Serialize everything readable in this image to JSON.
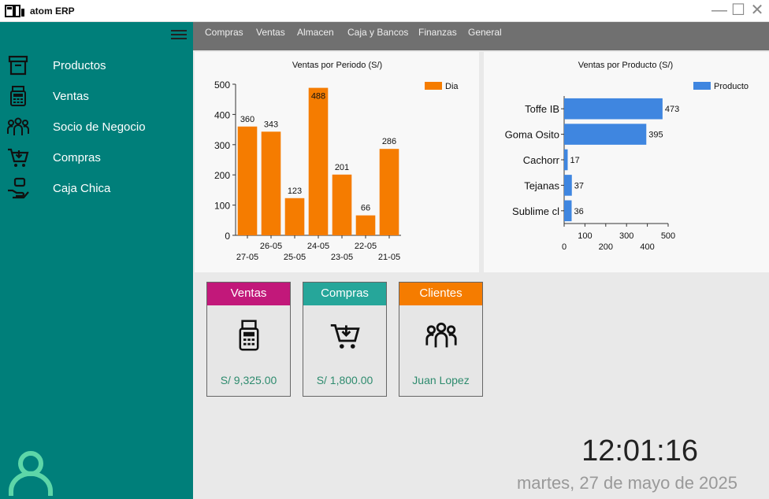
{
  "app": {
    "title": "atom ERP"
  },
  "window_controls": {
    "minimize": "—",
    "maximize": "☐",
    "close": "✕"
  },
  "sidebar": {
    "items": [
      {
        "label": "Productos",
        "icon": "box-icon"
      },
      {
        "label": "Ventas",
        "icon": "cash-register-icon"
      },
      {
        "label": "Socio de Negocio",
        "icon": "people-group-icon"
      },
      {
        "label": "Compras",
        "icon": "cart-icon"
      },
      {
        "label": "Caja Chica",
        "icon": "hand-money-icon"
      }
    ],
    "user_icon": "user-icon"
  },
  "menu": {
    "items": [
      "Compras",
      "Ventas",
      "Almacen",
      "Caja y Bancos",
      "Finanzas",
      "General"
    ]
  },
  "colors": {
    "sidebar": "#007f7a",
    "bar_orange": "#f57c00",
    "bar_blue": "#3f86e0",
    "ventas": "#c2187a",
    "compras": "#26a69a",
    "clientes": "#f57c00",
    "value_green": "#2e8b6e"
  },
  "chart_data": [
    {
      "type": "bar",
      "title": "Ventas por Periodo (S/)",
      "categories": [
        "27-05",
        "26-05",
        "25-05",
        "24-05",
        "23-05",
        "22-05",
        "21-05"
      ],
      "series": [
        {
          "name": "Dia",
          "values": [
            360,
            343,
            123,
            488,
            201,
            66,
            286
          ]
        }
      ],
      "ylim": [
        0,
        500
      ],
      "yticks": [
        "0",
        "100",
        "200",
        "300",
        "400",
        "500"
      ],
      "legend": "top-right"
    },
    {
      "type": "bar",
      "orientation": "horizontal",
      "title": "Ventas por Producto (S/)",
      "categories": [
        "Toffe IB",
        "Goma Osito",
        "Cachorr",
        "Tejanas",
        "Sublime cl"
      ],
      "series": [
        {
          "name": "Producto",
          "values": [
            473,
            395,
            17,
            37,
            36
          ]
        }
      ],
      "xlim": [
        0,
        500
      ],
      "xticks": [
        "0",
        "100",
        "200",
        "300",
        "400",
        "500"
      ],
      "legend": "top-right"
    }
  ],
  "cards": [
    {
      "title": "Ventas",
      "value": "S/ 9,325.00",
      "icon": "cash-register-icon"
    },
    {
      "title": "Compras",
      "value": "S/ 1,800.00",
      "icon": "cart-icon"
    },
    {
      "title": "Clientes",
      "value": "Juan Lopez",
      "icon": "people-group-icon"
    }
  ],
  "clock": {
    "time": "12:01:16",
    "date": "martes, 27 de mayo de 2025"
  }
}
